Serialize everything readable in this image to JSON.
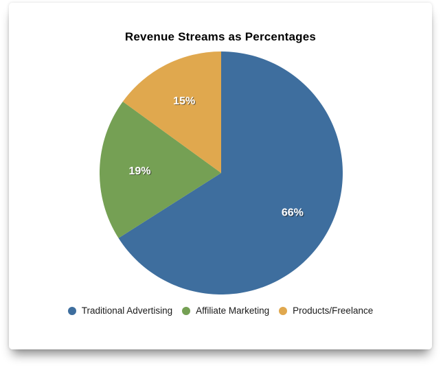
{
  "chart_data": {
    "type": "pie",
    "title": "Revenue Streams as Percentages",
    "start_angle_deg": 0,
    "direction": "clockwise",
    "slices": [
      {
        "label": "Traditional Advertising",
        "value": 66,
        "display": "66%",
        "color": "#3E6E9E"
      },
      {
        "label": "Affiliate Marketing",
        "value": 19,
        "display": "19%",
        "color": "#75A054"
      },
      {
        "label": "Products/Freelance",
        "value": 15,
        "display": "15%",
        "color": "#E0A84E"
      }
    ],
    "legend_position": "bottom",
    "value_label_color": "#FFFFFF",
    "value_label_radius_ratio": 0.67
  }
}
